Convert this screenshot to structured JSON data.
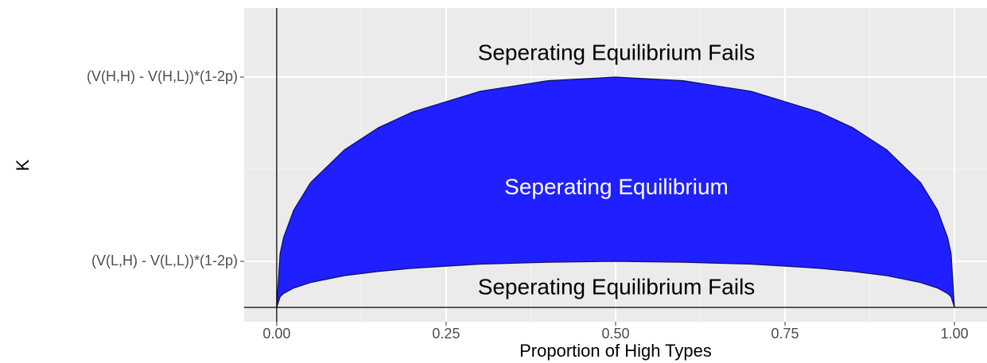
{
  "chart_data": {
    "type": "ribbon",
    "x_label": "Proportion of High Types",
    "y_label": "K",
    "x": [
      0,
      0.005,
      0.01,
      0.025,
      0.05,
      0.1,
      0.15,
      0.2,
      0.3,
      0.4,
      0.5,
      0.6,
      0.7,
      0.8,
      0.85,
      0.9,
      0.95,
      0.975,
      0.99,
      0.995,
      1
    ],
    "series": [
      {
        "name": "lower",
        "color": "#0f0f66",
        "values": [
          0,
          0.23,
          0.3,
          0.42,
          0.54,
          0.69,
          0.78,
          0.85,
          0.94,
          0.98,
          1,
          0.98,
          0.94,
          0.85,
          0.78,
          0.69,
          0.54,
          0.42,
          0.3,
          0.23,
          0
        ]
      },
      {
        "name": "upper",
        "color": "#0f0f66",
        "values": [
          0,
          1.17,
          1.51,
          2.11,
          2.71,
          3.42,
          3.9,
          4.24,
          4.69,
          4.92,
          5,
          4.92,
          4.69,
          4.24,
          3.9,
          3.42,
          2.71,
          2.11,
          1.51,
          1.17,
          0
        ]
      }
    ],
    "fill": "#1f1fff",
    "xlim": [
      -0.048,
      1.048
    ],
    "ylim": [
      -0.31,
      6.5
    ],
    "xticks": [
      {
        "value": 0,
        "label": "0.00"
      },
      {
        "value": 0.25,
        "label": "0.25"
      },
      {
        "value": 0.5,
        "label": "0.50"
      },
      {
        "value": 0.75,
        "label": "0.75"
      },
      {
        "value": 1,
        "label": "1.00"
      }
    ],
    "xticks_minor": [
      0.125,
      0.375,
      0.625,
      0.875
    ],
    "yticks": [
      {
        "value": 1,
        "label": "(V(L,H) - V(L,L))*(1-2p)"
      },
      {
        "value": 5,
        "label": "(V(H,H) - V(H,L))*(1-2p)"
      }
    ],
    "yticks_minor": [
      3
    ],
    "vline": 0,
    "hline": 0,
    "grid": true,
    "annotations": [
      "Seperating Equilibrium Fails",
      "Seperating Equilibrium",
      "Seperating Equilibrium Fails"
    ]
  }
}
